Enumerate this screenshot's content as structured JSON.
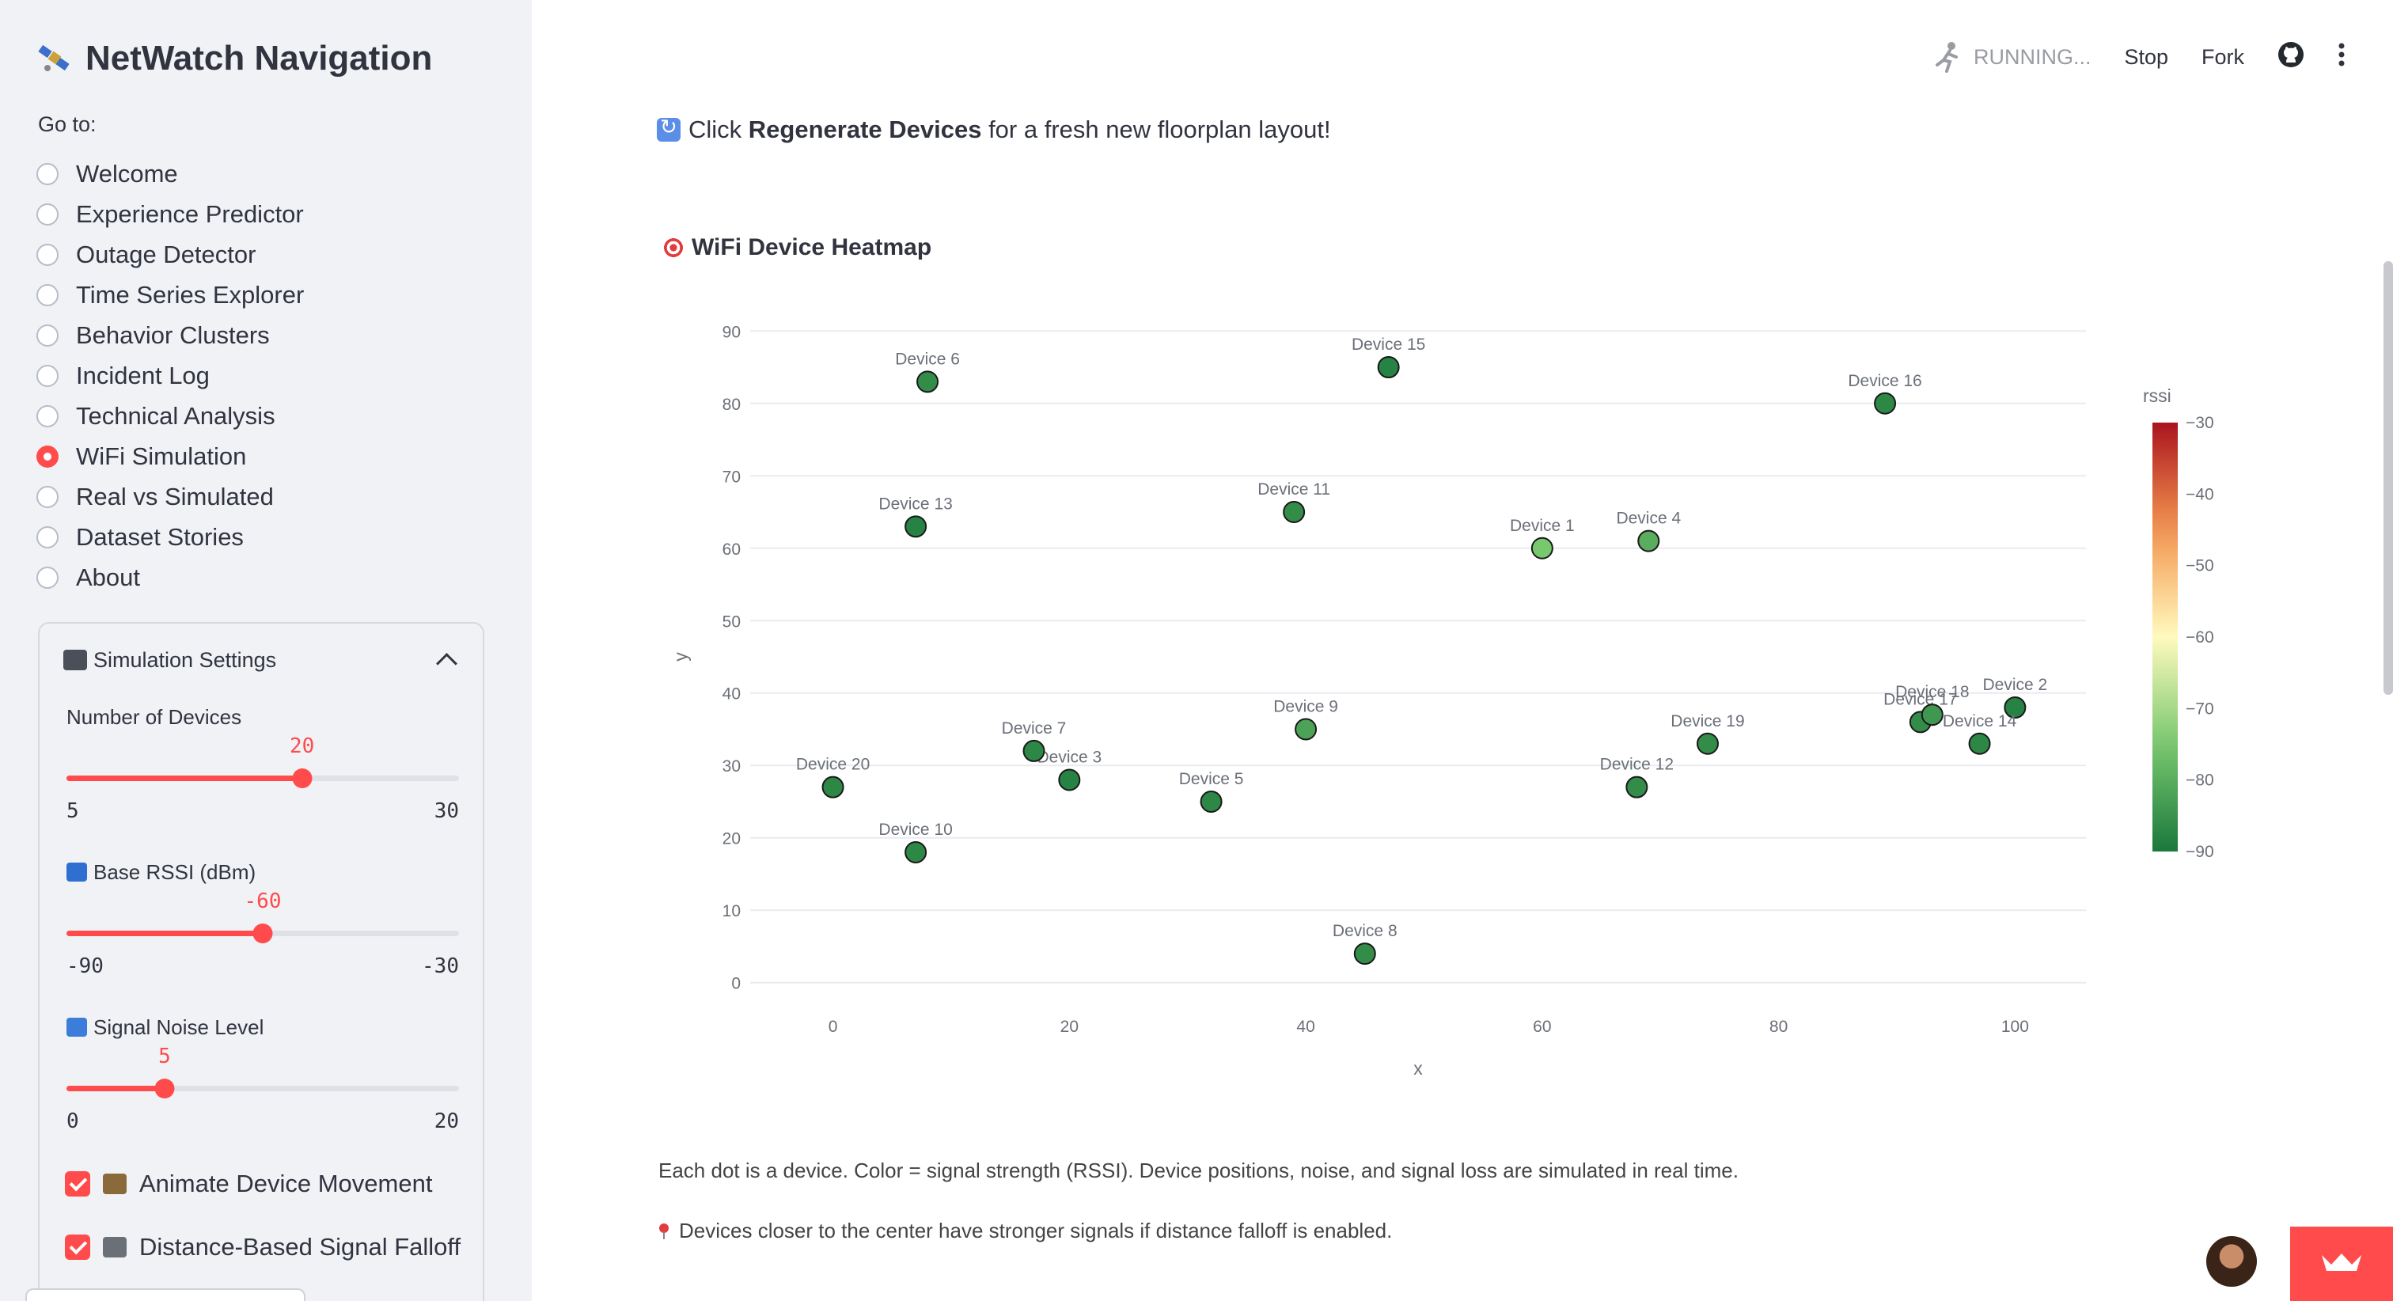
{
  "sidebar": {
    "title": "NetWatch Navigation",
    "goto_label": "Go to:",
    "nav_items": [
      {
        "label": "Welcome",
        "selected": false
      },
      {
        "label": "Experience Predictor",
        "selected": false
      },
      {
        "label": "Outage Detector",
        "selected": false
      },
      {
        "label": "Time Series Explorer",
        "selected": false
      },
      {
        "label": "Behavior Clusters",
        "selected": false
      },
      {
        "label": "Incident Log",
        "selected": false
      },
      {
        "label": "Technical Analysis",
        "selected": false
      },
      {
        "label": "WiFi Simulation",
        "selected": true
      },
      {
        "label": "Real vs Simulated",
        "selected": false
      },
      {
        "label": "Dataset Stories",
        "selected": false
      },
      {
        "label": "About",
        "selected": false
      }
    ],
    "settings": {
      "title": "Simulation Settings",
      "sliders": [
        {
          "label": "Number of Devices",
          "value": "20",
          "min": "5",
          "max": "30",
          "frac": 0.6
        },
        {
          "label": "Base RSSI (dBm)",
          "value": "-60",
          "min": "-90",
          "max": "-30",
          "frac": 0.5
        },
        {
          "label": "Signal Noise Level",
          "value": "5",
          "min": "0",
          "max": "20",
          "frac": 0.25
        }
      ],
      "checkboxes": [
        {
          "label": "Animate Device Movement",
          "checked": true
        },
        {
          "label": "Distance-Based Signal Falloff",
          "checked": true
        }
      ]
    }
  },
  "toolbar": {
    "running": "RUNNING...",
    "stop": "Stop",
    "fork": "Fork"
  },
  "main": {
    "regen_prefix": "Click ",
    "regen_bold": "Regenerate Devices",
    "regen_suffix": " for a fresh new floorplan layout!",
    "chart_heading": "WiFi Device Heatmap",
    "caption1": "Each dot is a device. Color = signal strength (RSSI). Device positions, noise, and signal loss are simulated in real time.",
    "caption2": "Devices closer to the center have stronger signals if distance falloff is enabled."
  },
  "chart_data": {
    "type": "scatter",
    "title": "",
    "xlabel": "x",
    "ylabel": "y",
    "xlim": [
      -7,
      106
    ],
    "ylim": [
      -2,
      92
    ],
    "x_ticks": [
      0,
      20,
      40,
      60,
      80,
      100
    ],
    "y_ticks": [
      0,
      10,
      20,
      30,
      40,
      50,
      60,
      70,
      80,
      90
    ],
    "colorbar": {
      "title": "rssi",
      "min": -90,
      "max": -30,
      "ticks": [
        -30,
        -40,
        -50,
        -60,
        -70,
        -80,
        -90
      ]
    },
    "points": [
      {
        "label": "Device 1",
        "x": 60,
        "y": 60,
        "rssi": -75
      },
      {
        "label": "Device 2",
        "x": 100,
        "y": 38,
        "rssi": -88
      },
      {
        "label": "Device 3",
        "x": 20,
        "y": 28,
        "rssi": -88
      },
      {
        "label": "Device 4",
        "x": 69,
        "y": 61,
        "rssi": -80
      },
      {
        "label": "Device 5",
        "x": 32,
        "y": 25,
        "rssi": -87
      },
      {
        "label": "Device 6",
        "x": 8,
        "y": 83,
        "rssi": -86
      },
      {
        "label": "Device 7",
        "x": 17,
        "y": 32,
        "rssi": -87
      },
      {
        "label": "Device 8",
        "x": 45,
        "y": 4,
        "rssi": -86
      },
      {
        "label": "Device 9",
        "x": 40,
        "y": 35,
        "rssi": -82
      },
      {
        "label": "Device 10",
        "x": 7,
        "y": 18,
        "rssi": -87
      },
      {
        "label": "Device 11",
        "x": 39,
        "y": 65,
        "rssi": -86
      },
      {
        "label": "Device 12",
        "x": 68,
        "y": 27,
        "rssi": -86
      },
      {
        "label": "Device 13",
        "x": 7,
        "y": 63,
        "rssi": -88
      },
      {
        "label": "Device 14",
        "x": 97,
        "y": 33,
        "rssi": -87
      },
      {
        "label": "Device 15",
        "x": 47,
        "y": 85,
        "rssi": -88
      },
      {
        "label": "Device 16",
        "x": 89,
        "y": 80,
        "rssi": -87
      },
      {
        "label": "Device 17",
        "x": 92,
        "y": 36,
        "rssi": -86
      },
      {
        "label": "Device 18",
        "x": 93,
        "y": 37,
        "rssi": -84
      },
      {
        "label": "Device 19",
        "x": 74,
        "y": 33,
        "rssi": -86
      },
      {
        "label": "Device 20",
        "x": 0,
        "y": 27,
        "rssi": -87
      }
    ]
  }
}
